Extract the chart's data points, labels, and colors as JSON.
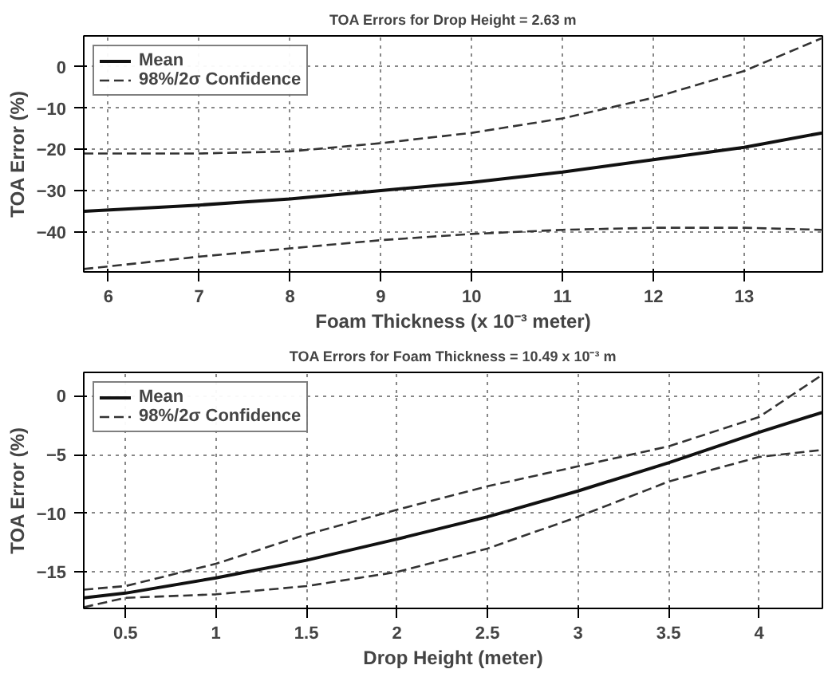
{
  "chart_data": [
    {
      "type": "line",
      "title": "TOA Errors for Drop Height = 2.63 m",
      "xlabel": "Foam Thickness (x 10⁻³ meter)",
      "ylabel": "TOA Error (%)",
      "x": [
        5.73,
        7,
        8,
        9,
        10,
        11,
        12,
        13,
        13.86
      ],
      "series": [
        {
          "name": "Mean",
          "color": "#111111",
          "line_style": "solid",
          "values": [
            -35,
            -33.5,
            -32,
            -30,
            -28,
            -25.5,
            -22.5,
            -19.5,
            -16
          ]
        },
        {
          "name": "98%/2σ Confidence",
          "color": "#333333",
          "line_style": "dashed",
          "values": [
            -21,
            -21,
            -20.5,
            -18.5,
            -16,
            -12.5,
            -7.5,
            -1,
            7
          ]
        },
        {
          "color": "#333333",
          "line_style": "dashed",
          "values": [
            -49,
            -46,
            -44,
            -42,
            -40.5,
            -39.5,
            -39,
            -39,
            -39.5
          ]
        }
      ],
      "xlim": [
        5.73,
        13.86
      ],
      "ylim": [
        -49.7,
        7.5
      ],
      "xticks": [
        6,
        7,
        8,
        9,
        10,
        11,
        12,
        13
      ],
      "yticks": [
        -40,
        -30,
        -20,
        -10,
        0
      ],
      "grid": true,
      "legend": "top left"
    },
    {
      "type": "line",
      "title": "TOA Errors for Foam Thickness = 10.49 x 10⁻³ m",
      "xlabel": "Drop Height (meter)",
      "ylabel": "TOA Error (%)",
      "x": [
        0.27,
        0.5,
        1,
        1.5,
        2,
        2.5,
        3,
        3.5,
        4,
        4.35
      ],
      "series": [
        {
          "name": "Mean",
          "color": "#111111",
          "line_style": "solid",
          "values": [
            -17.2,
            -16.8,
            -15.5,
            -14,
            -12.2,
            -10.3,
            -8.1,
            -5.7,
            -3.1,
            -1.4
          ]
        },
        {
          "name": "98%/2σ Confidence",
          "color": "#333333",
          "line_style": "dashed",
          "values": [
            -16.5,
            -16.2,
            -14.3,
            -11.8,
            -9.7,
            -7.7,
            -6,
            -4.3,
            -1.8,
            1.8
          ]
        },
        {
          "color": "#333333",
          "line_style": "dashed",
          "values": [
            -18,
            -17.2,
            -16.9,
            -16.2,
            -15,
            -13,
            -10.3,
            -7.3,
            -5.2,
            -4.6
          ]
        }
      ],
      "xlim": [
        0.27,
        4.35
      ],
      "ylim": [
        -18.1,
        2
      ],
      "xticks": [
        0.5,
        1,
        1.5,
        2,
        2.5,
        3,
        3.5,
        4
      ],
      "yticks": [
        -15,
        -10,
        -5,
        0
      ],
      "grid": true,
      "legend": "top left"
    }
  ]
}
